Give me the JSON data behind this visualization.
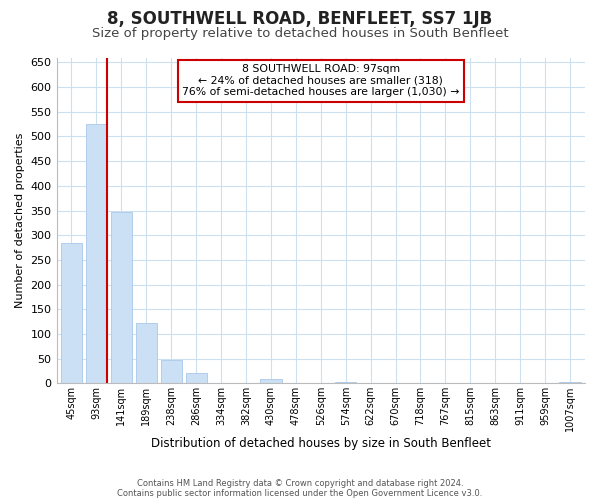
{
  "title": "8, SOUTHWELL ROAD, BENFLEET, SS7 1JB",
  "subtitle": "Size of property relative to detached houses in South Benfleet",
  "xlabel": "Distribution of detached houses by size in South Benfleet",
  "ylabel": "Number of detached properties",
  "footer_line1": "Contains HM Land Registry data © Crown copyright and database right 2024.",
  "footer_line2": "Contains public sector information licensed under the Open Government Licence v3.0.",
  "bar_labels": [
    "45sqm",
    "93sqm",
    "141sqm",
    "189sqm",
    "238sqm",
    "286sqm",
    "334sqm",
    "382sqm",
    "430sqm",
    "478sqm",
    "526sqm",
    "574sqm",
    "622sqm",
    "670sqm",
    "718sqm",
    "767sqm",
    "815sqm",
    "863sqm",
    "911sqm",
    "959sqm",
    "1007sqm"
  ],
  "bar_values": [
    285,
    525,
    348,
    122,
    48,
    20,
    0,
    0,
    8,
    0,
    0,
    3,
    0,
    0,
    0,
    0,
    0,
    0,
    0,
    0,
    3
  ],
  "bar_color": "#cce0f5",
  "bar_edge_color": "#aac8e8",
  "marker_line_color": "#cc0000",
  "ylim": [
    0,
    660
  ],
  "yticks": [
    0,
    50,
    100,
    150,
    200,
    250,
    300,
    350,
    400,
    450,
    500,
    550,
    600,
    650
  ],
  "annotation_title": "8 SOUTHWELL ROAD: 97sqm",
  "annotation_line1": "← 24% of detached houses are smaller (318)",
  "annotation_line2": "76% of semi-detached houses are larger (1,030) →",
  "annotation_box_color": "#ffffff",
  "annotation_box_edge": "#cc0000",
  "background_color": "#ffffff",
  "grid_color": "#cce0f0",
  "title_fontsize": 12,
  "subtitle_fontsize": 9.5
}
